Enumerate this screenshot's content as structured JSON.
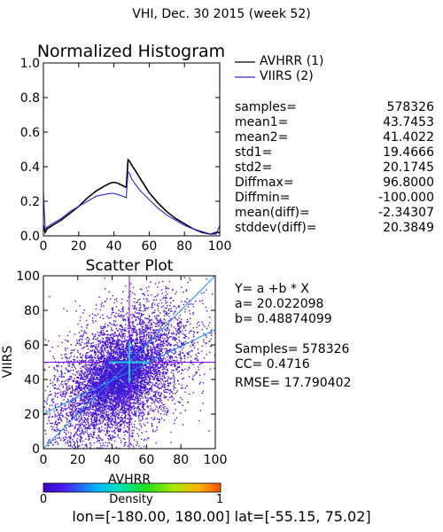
{
  "header": {
    "title": "VHI,  Dec. 30 2015 (week 52)"
  },
  "colors": {
    "avhrr": "#000000",
    "viirs": "#2a2ad4",
    "scatter_primary": "#4a10e8",
    "crosshair": "#8a00ff",
    "cross_center": "#22c7d8"
  },
  "legend": {
    "items": [
      {
        "label": "AVHRR (1)",
        "color": "#000000"
      },
      {
        "label": "VIIRS (2)",
        "color": "#2a2ad4"
      }
    ]
  },
  "stats": [
    {
      "label": "samples=",
      "value": "578326"
    },
    {
      "label": "mean1=",
      "value": "43.7453"
    },
    {
      "label": "mean2=",
      "value": "41.4022"
    },
    {
      "label": "std1=",
      "value": "19.4666"
    },
    {
      "label": "std2=",
      "value": "20.1745"
    },
    {
      "label": "Diffmax=",
      "value": "96.8000"
    },
    {
      "label": "Diffmin=",
      "value": "-100.000"
    },
    {
      "label": "mean(diff)=",
      "value": "-2.34307"
    },
    {
      "label": "stddev(diff)=",
      "value": "20.3849"
    }
  ],
  "regression": {
    "eq": "Y= a +b * X",
    "a": "a= 20.022098",
    "b": "b= 0.48874099",
    "samples": "Samples= 578326",
    "cc": "CC=  0.4716",
    "rmse": "RMSE= 17.790402"
  },
  "colorbar": {
    "label": "Density",
    "min_label": "0",
    "max_label": "1"
  },
  "footer": {
    "text": "lon=[-180.00, 180.00] lat=[-55.15, 75.02]"
  },
  "chart_data": [
    {
      "type": "line",
      "title": "Normalized Histogram",
      "xlim": [
        0,
        100
      ],
      "ylim": [
        0,
        1.0
      ],
      "x_ticks": [
        "0",
        "20",
        "40",
        "60",
        "80",
        "100"
      ],
      "y_ticks": [
        "0.0",
        "0.2",
        "0.4",
        "0.6",
        "0.8",
        "1.0"
      ],
      "x": [
        0,
        1,
        2,
        5,
        10,
        15,
        20,
        25,
        30,
        35,
        38,
        40,
        42,
        45,
        47,
        48,
        49,
        50,
        52,
        55,
        60,
        65,
        70,
        75,
        80,
        85,
        90,
        95,
        98,
        100
      ],
      "series": [
        {
          "name": "AVHRR (1)",
          "values": [
            0.06,
            0.02,
            0.04,
            0.06,
            0.09,
            0.13,
            0.17,
            0.22,
            0.26,
            0.29,
            0.305,
            0.31,
            0.305,
            0.29,
            0.28,
            0.44,
            0.43,
            0.41,
            0.38,
            0.33,
            0.25,
            0.19,
            0.14,
            0.1,
            0.07,
            0.04,
            0.02,
            0.01,
            0.02,
            0.02
          ]
        },
        {
          "name": "VIIRS (2)",
          "values": [
            0.25,
            0.04,
            0.05,
            0.07,
            0.1,
            0.14,
            0.17,
            0.2,
            0.23,
            0.24,
            0.245,
            0.245,
            0.24,
            0.23,
            0.22,
            0.37,
            0.36,
            0.33,
            0.3,
            0.26,
            0.21,
            0.16,
            0.12,
            0.09,
            0.06,
            0.04,
            0.025,
            0.01,
            0.01,
            0.06
          ]
        }
      ]
    },
    {
      "type": "scatter",
      "title": "Scatter Plot",
      "xlabel": "AVHRR",
      "ylabel": "VIIRS",
      "xlim": [
        0,
        100
      ],
      "ylim": [
        0,
        100
      ],
      "x_ticks": [
        "0",
        "20",
        "40",
        "60",
        "80",
        "100"
      ],
      "y_ticks": [
        "0",
        "20",
        "40",
        "60",
        "80",
        "100"
      ],
      "samples": 578326,
      "fit": {
        "a": 20.022098,
        "b": 0.48874099
      },
      "cloud": {
        "mean_x": 43.7453,
        "mean_y": 41.4022,
        "std_x": 19.4666,
        "std_y": 20.1745,
        "cc": 0.4716
      },
      "crosshair": {
        "x": 50,
        "y": 50
      }
    }
  ]
}
